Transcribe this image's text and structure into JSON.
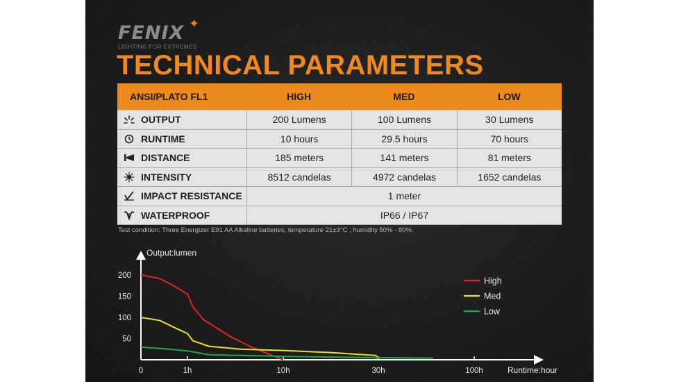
{
  "brand": {
    "name": "FENIX",
    "tagline": "LIGHTING FOR EXTREMES"
  },
  "title": "TECHNICAL PARAMETERS",
  "table": {
    "headers": [
      "ANSI/PLATO FL1",
      "HIGH",
      "MED",
      "LOW"
    ],
    "rows": [
      {
        "icon": "output-burst-icon",
        "label": "OUTPUT",
        "values": [
          "200 Lumens",
          "100 Lumens",
          "30 Lumens"
        ]
      },
      {
        "icon": "clock-icon",
        "label": "RUNTIME",
        "values": [
          "10 hours",
          "29.5 hours",
          "70 hours"
        ]
      },
      {
        "icon": "beam-distance-icon",
        "label": "DISTANCE",
        "values": [
          "185 meters",
          "141 meters",
          "81 meters"
        ]
      },
      {
        "icon": "intensity-icon",
        "label": "INTENSITY",
        "values": [
          "8512 candelas",
          "4972 candelas",
          "1652 candelas"
        ]
      },
      {
        "icon": "impact-icon",
        "label": "IMPACT RESISTANCE",
        "merged": "1 meter"
      },
      {
        "icon": "waterproof-icon",
        "label": "WATERPROOF",
        "merged": "IP66 / IP67"
      }
    ]
  },
  "note": "Test condition: Three Energizer E91 AA Alkaline batteries, temperature 21±3°C , humidity 50% - 80%.",
  "colors": {
    "accent": "#ec8a1d",
    "high": "#e02424",
    "med": "#e8e02a",
    "low": "#1fa84a"
  },
  "chart_data": {
    "type": "line",
    "ylabel": "Output:lumen",
    "xlabel": "Runtime:hour",
    "yticks": [
      200,
      150,
      100,
      50
    ],
    "xticks": [
      "0",
      "1h",
      "10h",
      "30h",
      "100h"
    ],
    "ylim": [
      0,
      200
    ],
    "legend_position": "top-right",
    "series": [
      {
        "name": "High",
        "color": "#e02424",
        "points": [
          [
            0,
            200
          ],
          [
            0.4,
            192
          ],
          [
            0.7,
            175
          ],
          [
            1,
            155
          ],
          [
            1.5,
            125
          ],
          [
            2.5,
            95
          ],
          [
            5,
            55
          ],
          [
            7,
            30
          ],
          [
            8.5,
            15
          ],
          [
            10,
            0
          ]
        ]
      },
      {
        "name": "Med",
        "color": "#e8e02a",
        "points": [
          [
            0,
            100
          ],
          [
            0.4,
            93
          ],
          [
            0.8,
            72
          ],
          [
            1,
            62
          ],
          [
            1.5,
            45
          ],
          [
            3,
            32
          ],
          [
            6,
            25
          ],
          [
            10,
            22
          ],
          [
            20,
            17
          ],
          [
            29.5,
            10
          ],
          [
            30,
            0
          ]
        ]
      },
      {
        "name": "Low",
        "color": "#1fa84a",
        "points": [
          [
            0,
            30
          ],
          [
            0.5,
            26
          ],
          [
            1,
            21
          ],
          [
            3,
            12
          ],
          [
            10,
            8
          ],
          [
            30,
            5
          ],
          [
            70,
            4
          ]
        ]
      }
    ]
  }
}
